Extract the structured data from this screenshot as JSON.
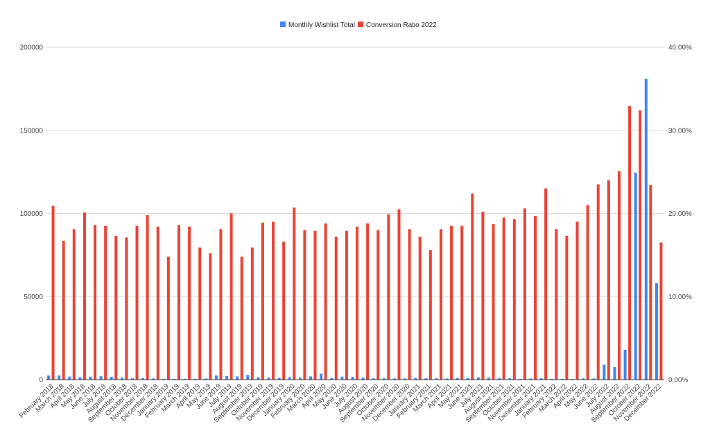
{
  "chart_data": {
    "type": "bar",
    "title": "",
    "xlabel": "",
    "ylabel": "",
    "legend_position": "top",
    "grid": true,
    "categories": [
      "February 2018",
      "March 2018",
      "April 2018",
      "May 2018",
      "June 2018",
      "July 2018",
      "August 2018",
      "September 2018",
      "October 2018",
      "November 2018",
      "December 2018",
      "January 2019",
      "February 2019",
      "March 2019",
      "April 2019",
      "May 2019",
      "June 2019",
      "July 2019",
      "August 2019",
      "September 2019",
      "October 2019",
      "November 2019",
      "December 2019",
      "January 2020",
      "February 2020",
      "March 2020",
      "April 2020",
      "May 2020",
      "June 2020",
      "July 2020",
      "August 2020",
      "September 2020",
      "October 2020",
      "November 2020",
      "December 2020",
      "January 2021",
      "February 2021",
      "March 2021",
      "April 2021",
      "May 2021",
      "June 2021",
      "July 2021",
      "August 2021",
      "September 2021",
      "October 2021",
      "November 2021",
      "December 2021",
      "January 2021",
      "February 2022",
      "March 2022",
      "April 2022",
      "May 2022",
      "June 2022",
      "July 2022",
      "August 2022",
      "September 2022",
      "October 2022",
      "November 2022",
      "December 2022"
    ],
    "left_axis": {
      "ylim": [
        0,
        200000
      ],
      "ticks": [
        "0",
        "50000",
        "100000",
        "150000",
        "200000"
      ]
    },
    "right_axis": {
      "ylim": [
        0,
        40
      ],
      "unit": "%",
      "ticks": [
        "0.00%",
        "10.00%",
        "20.00%",
        "30.00%",
        "40.00%"
      ]
    },
    "series": [
      {
        "name": "Monthly Wishlist Total",
        "axis": "left",
        "color": "#4285f4",
        "values": [
          2500,
          2500,
          1800,
          1400,
          1800,
          2000,
          1700,
          1200,
          800,
          1000,
          700,
          500,
          500,
          500,
          500,
          700,
          2500,
          2200,
          1900,
          2800,
          1400,
          1200,
          1000,
          1500,
          1200,
          1900,
          3500,
          1000,
          1800,
          1700,
          1100,
          800,
          800,
          700,
          700,
          1100,
          800,
          800,
          700,
          1000,
          1000,
          1400,
          1200,
          800,
          900,
          500,
          700,
          800,
          500,
          500,
          400,
          800,
          700,
          9000,
          7500,
          18000,
          124500,
          181000,
          58000
        ]
      },
      {
        "name": "Conversion Ratio 2022",
        "axis": "right",
        "color": "#ea4335",
        "values": [
          20.9,
          16.7,
          18.1,
          20.1,
          18.6,
          18.5,
          17.3,
          17.1,
          18.5,
          19.8,
          18.4,
          14.8,
          18.6,
          18.4,
          15.9,
          15.2,
          18.1,
          20.0,
          14.8,
          15.9,
          18.9,
          19.0,
          16.6,
          20.7,
          18.0,
          17.9,
          18.8,
          17.2,
          17.9,
          18.4,
          18.8,
          18.0,
          19.9,
          20.5,
          18.1,
          17.2,
          15.6,
          18.1,
          18.5,
          18.5,
          22.4,
          20.2,
          18.7,
          19.5,
          19.3,
          20.6,
          19.7,
          23.0,
          18.1,
          17.3,
          19.0,
          21.0,
          23.5,
          24.0,
          25.1,
          32.9,
          32.4,
          23.4,
          16.5
        ]
      }
    ]
  }
}
